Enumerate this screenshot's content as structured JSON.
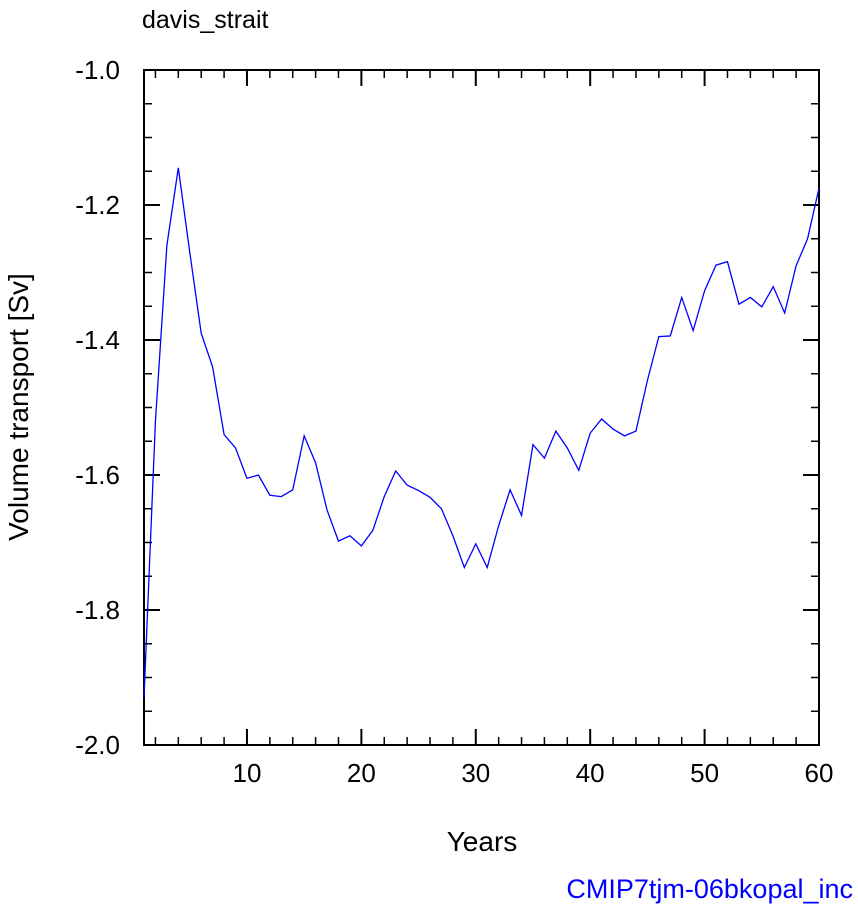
{
  "chart_data": {
    "type": "line",
    "title": "davis_strait",
    "xlabel": "Years",
    "ylabel": "Volume transport [Sv]",
    "footer": "CMIP7tjm-06bkopal_inc",
    "xlim": [
      1,
      60
    ],
    "ylim": [
      -2.0,
      -1.0
    ],
    "xticks": [
      10,
      20,
      30,
      40,
      50,
      60
    ],
    "xtick_labels": [
      "10",
      "20",
      "30",
      "40",
      "50",
      "60"
    ],
    "yticks": [
      -2.0,
      -1.8,
      -1.6,
      -1.4,
      -1.2,
      -1.0
    ],
    "ytick_labels": [
      "-2.0",
      "-1.8",
      "-1.6",
      "-1.4",
      "-1.2",
      "-1.0"
    ],
    "grid": false,
    "colors": {
      "line": "#0000ff",
      "footer": "#0000ff",
      "axis": "#000000"
    },
    "series": [
      {
        "x": [
          1,
          2,
          3,
          4,
          5,
          6,
          7,
          8,
          9,
          10,
          11,
          12,
          13,
          14,
          15,
          16,
          17,
          18,
          19,
          20,
          21,
          22,
          23,
          24,
          25,
          26,
          27,
          28,
          29,
          30,
          31,
          32,
          33,
          34,
          35,
          36,
          37,
          38,
          39,
          40,
          41,
          42,
          43,
          44,
          45,
          46,
          47,
          48,
          49,
          50,
          51,
          52,
          53,
          54,
          55,
          56,
          57,
          58,
          59,
          60
        ],
        "values": [
          -1.93,
          -1.52,
          -1.26,
          -1.145,
          -1.27,
          -1.39,
          -1.44,
          -1.54,
          -1.56,
          -1.605,
          -1.6,
          -1.63,
          -1.632,
          -1.622,
          -1.542,
          -1.582,
          -1.652,
          -1.698,
          -1.69,
          -1.705,
          -1.682,
          -1.632,
          -1.594,
          -1.615,
          -1.623,
          -1.633,
          -1.65,
          -1.69,
          -1.737,
          -1.702,
          -1.737,
          -1.675,
          -1.622,
          -1.66,
          -1.555,
          -1.575,
          -1.535,
          -1.56,
          -1.593,
          -1.538,
          -1.517,
          -1.532,
          -1.542,
          -1.535,
          -1.46,
          -1.395,
          -1.394,
          -1.337,
          -1.386,
          -1.327,
          -1.289,
          -1.284,
          -1.347,
          -1.337,
          -1.351,
          -1.321,
          -1.36,
          -1.29,
          -1.25,
          -1.175
        ]
      }
    ]
  }
}
